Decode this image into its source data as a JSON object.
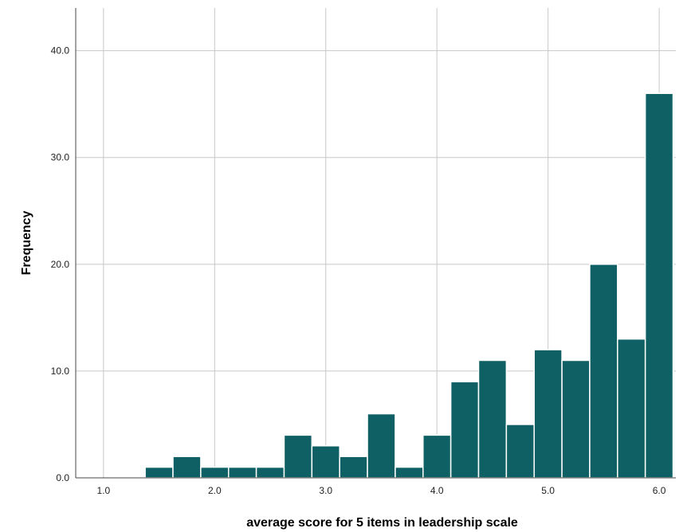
{
  "chart_data": {
    "type": "bar",
    "subtype": "histogram",
    "xlabel": "average score for 5 items in leadership scale",
    "ylabel": "Frequency",
    "xlim": [
      0.75,
      6.15
    ],
    "ylim": [
      0,
      44
    ],
    "x_ticks": [
      1.0,
      2.0,
      3.0,
      4.0,
      5.0,
      6.0
    ],
    "x_tick_labels": [
      "1.0",
      "2.0",
      "3.0",
      "4.0",
      "5.0",
      "6.0"
    ],
    "y_ticks": [
      0,
      10,
      20,
      30,
      40
    ],
    "y_tick_labels": [
      "0.0",
      "10.0",
      "20.0",
      "30.0",
      "40.0"
    ],
    "grid": true,
    "bar_color": "#0f6064",
    "bar_edge_color": "#ffffff",
    "grid_color": "#c8c8c8",
    "bins": [
      {
        "x0": 1.375,
        "x1": 1.625,
        "count": 1
      },
      {
        "x0": 1.625,
        "x1": 1.875,
        "count": 2
      },
      {
        "x0": 1.875,
        "x1": 2.125,
        "count": 1
      },
      {
        "x0": 2.125,
        "x1": 2.375,
        "count": 1
      },
      {
        "x0": 2.375,
        "x1": 2.625,
        "count": 1
      },
      {
        "x0": 2.625,
        "x1": 2.875,
        "count": 4
      },
      {
        "x0": 2.875,
        "x1": 3.125,
        "count": 3
      },
      {
        "x0": 3.125,
        "x1": 3.375,
        "count": 2
      },
      {
        "x0": 3.375,
        "x1": 3.625,
        "count": 6
      },
      {
        "x0": 3.625,
        "x1": 3.875,
        "count": 1
      },
      {
        "x0": 3.875,
        "x1": 4.125,
        "count": 4
      },
      {
        "x0": 4.125,
        "x1": 4.375,
        "count": 9
      },
      {
        "x0": 4.375,
        "x1": 4.625,
        "count": 11
      },
      {
        "x0": 4.625,
        "x1": 4.875,
        "count": 5
      },
      {
        "x0": 4.875,
        "x1": 5.125,
        "count": 12
      },
      {
        "x0": 5.125,
        "x1": 5.375,
        "count": 11
      },
      {
        "x0": 5.375,
        "x1": 5.625,
        "count": 20
      },
      {
        "x0": 5.625,
        "x1": 5.875,
        "count": 13
      },
      {
        "x0": 5.875,
        "x1": 6.125,
        "count": 36
      }
    ]
  }
}
